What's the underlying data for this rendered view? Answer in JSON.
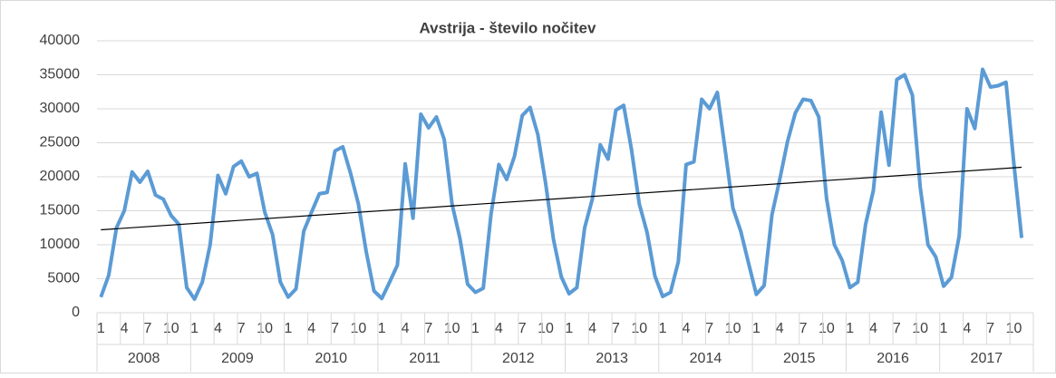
{
  "chart_data": {
    "type": "line",
    "title": "Avstrija - število nočitev",
    "categories": [
      "1",
      null,
      null,
      "4",
      null,
      null,
      "7",
      null,
      null,
      "10",
      null,
      null,
      "1",
      null,
      null,
      "4",
      null,
      null,
      "7",
      null,
      null,
      "10",
      null,
      null,
      "1",
      null,
      null,
      "4",
      null,
      null,
      "7",
      null,
      null,
      "10",
      null,
      null,
      "1",
      null,
      null,
      "4",
      null,
      null,
      "7",
      null,
      null,
      "10",
      null,
      null,
      "1",
      null,
      null,
      "4",
      null,
      null,
      "7",
      null,
      null,
      "10",
      null,
      null,
      "1",
      null,
      null,
      "4",
      null,
      null,
      "7",
      null,
      null,
      "10",
      null,
      null,
      "1",
      null,
      null,
      "4",
      null,
      null,
      "7",
      null,
      null,
      "10",
      null,
      null,
      "1",
      null,
      null,
      "4",
      null,
      null,
      "7",
      null,
      null,
      "10",
      null,
      null,
      "1",
      null,
      null,
      "4",
      null,
      null,
      "7",
      null,
      null,
      "10",
      null,
      null,
      "1",
      null,
      null,
      "4",
      null,
      null,
      "7",
      null,
      null,
      "10",
      null,
      null
    ],
    "year_groups": [
      "2008",
      "2009",
      "2010",
      "2011",
      "2012",
      "2013",
      "2014",
      "2015",
      "2016",
      "2017"
    ],
    "series": [
      {
        "color": "#5b9bd5",
        "values": [
          2300,
          5500,
          12500,
          15000,
          20700,
          19200,
          20800,
          17300,
          16700,
          14300,
          13000,
          3700,
          2000,
          4500,
          10000,
          20200,
          17500,
          21500,
          22300,
          20000,
          20500,
          14800,
          11500,
          4500,
          2300,
          3500,
          12000,
          14800,
          17500,
          17700,
          23800,
          24400,
          20500,
          16000,
          9000,
          3200,
          2100,
          4500,
          7000,
          21900,
          13900,
          29200,
          27200,
          28800,
          25500,
          16000,
          11000,
          4200,
          3000,
          3600,
          14500,
          21800,
          19600,
          23000,
          29000,
          30200,
          26200,
          19000,
          10800,
          5300,
          2800,
          3700,
          12500,
          16800,
          24700,
          22600,
          29800,
          30500,
          24000,
          16000,
          11800,
          5400,
          2400,
          3000,
          7500,
          21800,
          22200,
          31400,
          30000,
          32400,
          24000,
          15400,
          12000,
          7300,
          2700,
          4000,
          14400,
          19600,
          25200,
          29400,
          31400,
          31200,
          28800,
          16800,
          10000,
          7700,
          3700,
          4500,
          13000,
          18000,
          29500,
          21700,
          34300,
          35000,
          32000,
          18500,
          10000,
          8200,
          3900,
          5200,
          11300,
          30000,
          27100,
          35800,
          33200,
          33400,
          33900,
          22000,
          11000,
          null
        ]
      }
    ],
    "trendline": {
      "color": "#000000",
      "values": [
        12200,
        21400
      ]
    },
    "ylim": [
      0,
      40000
    ],
    "yticks": [
      0,
      5000,
      10000,
      15000,
      20000,
      25000,
      30000,
      35000,
      40000
    ],
    "grid": true
  }
}
